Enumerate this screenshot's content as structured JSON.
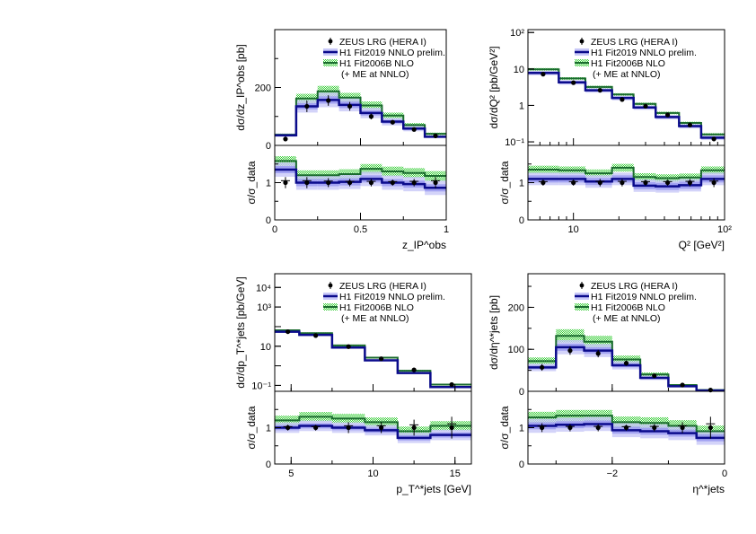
{
  "legend": {
    "data": "ZEUS LRG (HERA I)",
    "fit2019": "H1 Fit2019 NNLO prelim.",
    "fit2006": "H1 Fit2006B NLO",
    "fit2006_sub": "(+ ME at NNLO)"
  },
  "colors": {
    "fit2019_line": "#0b0b8c",
    "fit2019_band_inner": "#8f8ff0",
    "fit2019_band_outer": "#c8c8f8",
    "fit2006_line": "#1a6b2e",
    "fit2006_hatch": "#33cc33",
    "data": "#000000"
  },
  "chart_data": [
    {
      "id": "zpom",
      "type": "line",
      "title": "",
      "xlabel": "z_IP^obs",
      "ylabel": "dσ/dz_IP^obs [pb]",
      "ratio_ylabel": "σ/σ_data",
      "xscale": "linear",
      "yscale": "linear",
      "xlim": [
        0,
        1
      ],
      "ylim": [
        0,
        400
      ],
      "ratio_ylim": [
        0,
        2
      ],
      "xticks": [
        0,
        0.5,
        1
      ],
      "xtick_labels": [
        "0",
        "0.5",
        "1"
      ],
      "yticks": [
        0,
        200
      ],
      "ytick_labels": [
        "0",
        "200"
      ],
      "ratio_yticks": [
        0,
        1
      ],
      "ratio_ytick_labels": [
        "0",
        "1"
      ],
      "legend_position": "top-right",
      "bin_edges": [
        0,
        0.125,
        0.25,
        0.375,
        0.5,
        0.625,
        0.75,
        0.875,
        1.0
      ],
      "data": {
        "x": [
          0.0625,
          0.1875,
          0.3125,
          0.4375,
          0.5625,
          0.6875,
          0.8125,
          0.9375
        ],
        "y": [
          22,
          135,
          155,
          135,
          100,
          80,
          55,
          33
        ],
        "err": [
          8,
          20,
          18,
          15,
          10,
          8,
          6,
          6
        ]
      },
      "fit2019": {
        "values": [
          35,
          135,
          157,
          140,
          112,
          82,
          58,
          30
        ],
        "unc_inner": 0.08,
        "unc_outer": 0.16
      },
      "fit2006": {
        "values": [
          37,
          162,
          187,
          165,
          138,
          103,
          70,
          40
        ],
        "unc": 0.1
      },
      "ratio": {
        "data_err": [
          0.15,
          0.15,
          0.12,
          0.1,
          0.1,
          0.08,
          0.1,
          0.15
        ],
        "fit2019": [
          1.35,
          1.0,
          1.0,
          1.02,
          1.1,
          1.0,
          0.96,
          0.86
        ],
        "fit2006": [
          1.58,
          1.2,
          1.2,
          1.23,
          1.37,
          1.3,
          1.26,
          1.18
        ]
      }
    },
    {
      "id": "q2",
      "type": "line",
      "title": "",
      "xlabel": "Q² [GeV²]",
      "ylabel": "dσ/dQ² [pb/GeV²]",
      "ratio_ylabel": "σ/σ_data",
      "xscale": "log",
      "yscale": "log",
      "xlim": [
        5,
        100
      ],
      "ylim": [
        0.08,
        120
      ],
      "ratio_ylim": [
        0,
        2
      ],
      "xticks": [
        10,
        100
      ],
      "xtick_labels": [
        "10",
        "10²"
      ],
      "yticks": [
        0.1,
        1,
        10,
        100
      ],
      "ytick_labels": [
        "10⁻¹",
        "1",
        "10",
        "10²"
      ],
      "ratio_yticks": [
        0,
        1
      ],
      "ratio_ytick_labels": [
        "0",
        "1"
      ],
      "legend_position": "top-right",
      "bin_edges": [
        5,
        8,
        12,
        18,
        25,
        35,
        50,
        70,
        100
      ],
      "data": {
        "x": [
          6.3,
          10,
          15,
          21,
          30,
          42,
          59,
          85
        ],
        "y": [
          7.2,
          4.2,
          2.6,
          1.45,
          0.95,
          0.55,
          0.29,
          0.12
        ],
        "err": [
          0.4,
          0.3,
          0.25,
          0.15,
          0.1,
          0.05,
          0.03,
          0.015
        ]
      },
      "fit2019": {
        "values": [
          7.8,
          4.3,
          2.6,
          1.6,
          0.88,
          0.48,
          0.27,
          0.13
        ],
        "unc_inner": 0.08,
        "unc_outer": 0.14
      },
      "fit2006": {
        "values": [
          9.8,
          5.5,
          3.2,
          2.0,
          1.1,
          0.62,
          0.33,
          0.16
        ],
        "unc": 0.08
      },
      "ratio": {
        "data_err": [
          0.08,
          0.08,
          0.1,
          0.1,
          0.08,
          0.08,
          0.1,
          0.12
        ],
        "fit2019": [
          1.1,
          1.1,
          1.03,
          1.1,
          0.92,
          0.9,
          0.93,
          1.1
        ],
        "fit2006": [
          1.35,
          1.33,
          1.25,
          1.4,
          1.15,
          1.12,
          1.14,
          1.33
        ]
      }
    },
    {
      "id": "pt",
      "type": "line",
      "title": "",
      "xlabel": "p_T^*jets [GeV]",
      "ylabel": "dσ/dp_T^*jets [pb/GeV]",
      "ratio_ylabel": "σ/σ_data",
      "xscale": "linear",
      "yscale": "log",
      "xlim": [
        4,
        16
      ],
      "ylim": [
        0.05,
        50000
      ],
      "ratio_ylim": [
        0,
        2
      ],
      "xticks": [
        5,
        10,
        15
      ],
      "xtick_labels": [
        "5",
        "10",
        "15"
      ],
      "yticks": [
        0.1,
        10,
        1000,
        10000
      ],
      "ytick_labels": [
        "10⁻¹",
        "10",
        "10³",
        "10⁴"
      ],
      "ratio_yticks": [
        0,
        1
      ],
      "ratio_ytick_labels": [
        "0",
        "1"
      ],
      "legend_position": "top-right",
      "bin_edges": [
        4,
        5.5,
        7.5,
        9.5,
        11.5,
        13.5,
        16
      ],
      "data": {
        "x": [
          4.8,
          6.5,
          8.5,
          10.5,
          12.5,
          14.8
        ],
        "y": [
          55,
          35,
          9.5,
          2.3,
          0.62,
          0.11
        ],
        "err": [
          3,
          3,
          0.8,
          0.2,
          0.08,
          0.02
        ]
      },
      "fit2019": {
        "values": [
          55,
          38,
          8.5,
          1.9,
          0.43,
          0.082
        ],
        "unc_inner": 0.06,
        "unc_outer": 0.12
      },
      "fit2006": {
        "values": [
          65,
          46,
          11,
          2.6,
          0.56,
          0.11
        ],
        "unc": 0.1
      },
      "ratio": {
        "data_err": [
          0.08,
          0.08,
          0.15,
          0.15,
          0.22,
          0.3
        ],
        "fit2019": [
          1.0,
          1.05,
          1.0,
          0.93,
          0.72,
          0.8
        ],
        "fit2006": [
          1.2,
          1.3,
          1.25,
          1.15,
          0.9,
          1.05
        ]
      }
    },
    {
      "id": "eta",
      "type": "line",
      "title": "",
      "xlabel": "η^*jets",
      "ylabel": "dσ/dη^*jets [pb]",
      "ratio_ylabel": "σ/σ_data",
      "xscale": "linear",
      "yscale": "linear",
      "xlim": [
        -3.5,
        0
      ],
      "ylim": [
        0,
        280
      ],
      "ratio_ylim": [
        0,
        2
      ],
      "xticks": [
        -2,
        0
      ],
      "xtick_labels": [
        "−2",
        "0"
      ],
      "yticks": [
        0,
        100,
        200
      ],
      "ytick_labels": [
        "0",
        "100",
        "200"
      ],
      "ratio_yticks": [
        0,
        1
      ],
      "ratio_ytick_labels": [
        "0",
        "1"
      ],
      "legend_position": "top-right",
      "bin_edges": [
        -3.5,
        -3.0,
        -2.5,
        -2.0,
        -1.5,
        -1.0,
        -0.5,
        0
      ],
      "data": {
        "x": [
          -3.25,
          -2.75,
          -2.25,
          -1.75,
          -1.25,
          -0.75,
          -0.25
        ],
        "y": [
          57,
          97,
          90,
          67,
          37,
          15,
          3
        ],
        "err": [
          8,
          10,
          9,
          6,
          4,
          3,
          2
        ]
      },
      "fit2019": {
        "values": [
          57,
          105,
          97,
          62,
          32,
          12,
          2
        ],
        "unc_inner": 0.08,
        "unc_outer": 0.16
      },
      "fit2006": {
        "values": [
          72,
          132,
          118,
          76,
          40,
          15,
          3
        ],
        "unc": 0.12
      },
      "ratio": {
        "data_err": [
          0.12,
          0.1,
          0.1,
          0.08,
          0.1,
          0.15,
          0.3
        ],
        "fit2019": [
          1.05,
          1.08,
          1.1,
          0.93,
          0.9,
          0.85,
          0.72
        ],
        "fit2006": [
          1.28,
          1.33,
          1.33,
          1.15,
          1.13,
          1.05,
          0.9
        ]
      }
    }
  ]
}
